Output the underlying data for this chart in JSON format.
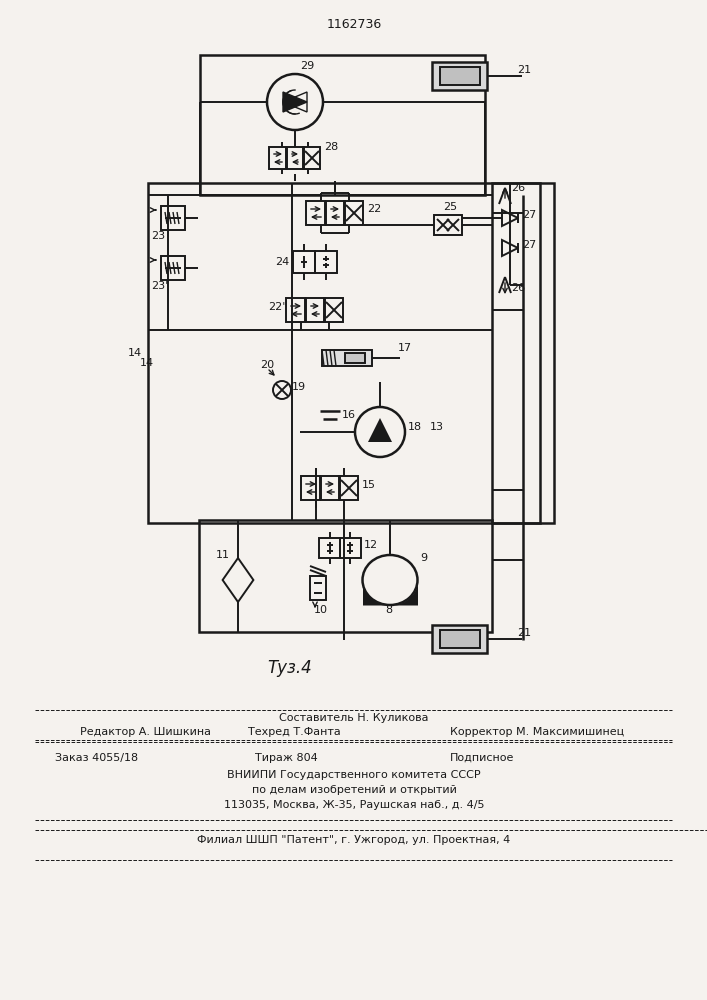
{
  "title": "1162736",
  "fig_label": "Τуз.4",
  "composer": "Составитель Н. Куликова",
  "editor": "Редактор А. Шишкина",
  "techred": "Техред Т.Фанта",
  "corrector": "Корректор М. Максимишинец",
  "order": "Заказ 4055/18",
  "print_run": "Тираж 804",
  "subscribed": "Подписное",
  "vnipi_line1": "ВНИИПИ Государственного комитета СССР",
  "vnipi_line2": "по делам изобретений и открытий",
  "vnipi_line3": "113035, Москва, Ж-35, Раушская наб., д. 4/5",
  "filial": "Филиал ШШП \"Патент\", г. Ужгород, ул. Проектная, 4",
  "bg_color": "#f5f2ee",
  "line_color": "#1a1a1a"
}
